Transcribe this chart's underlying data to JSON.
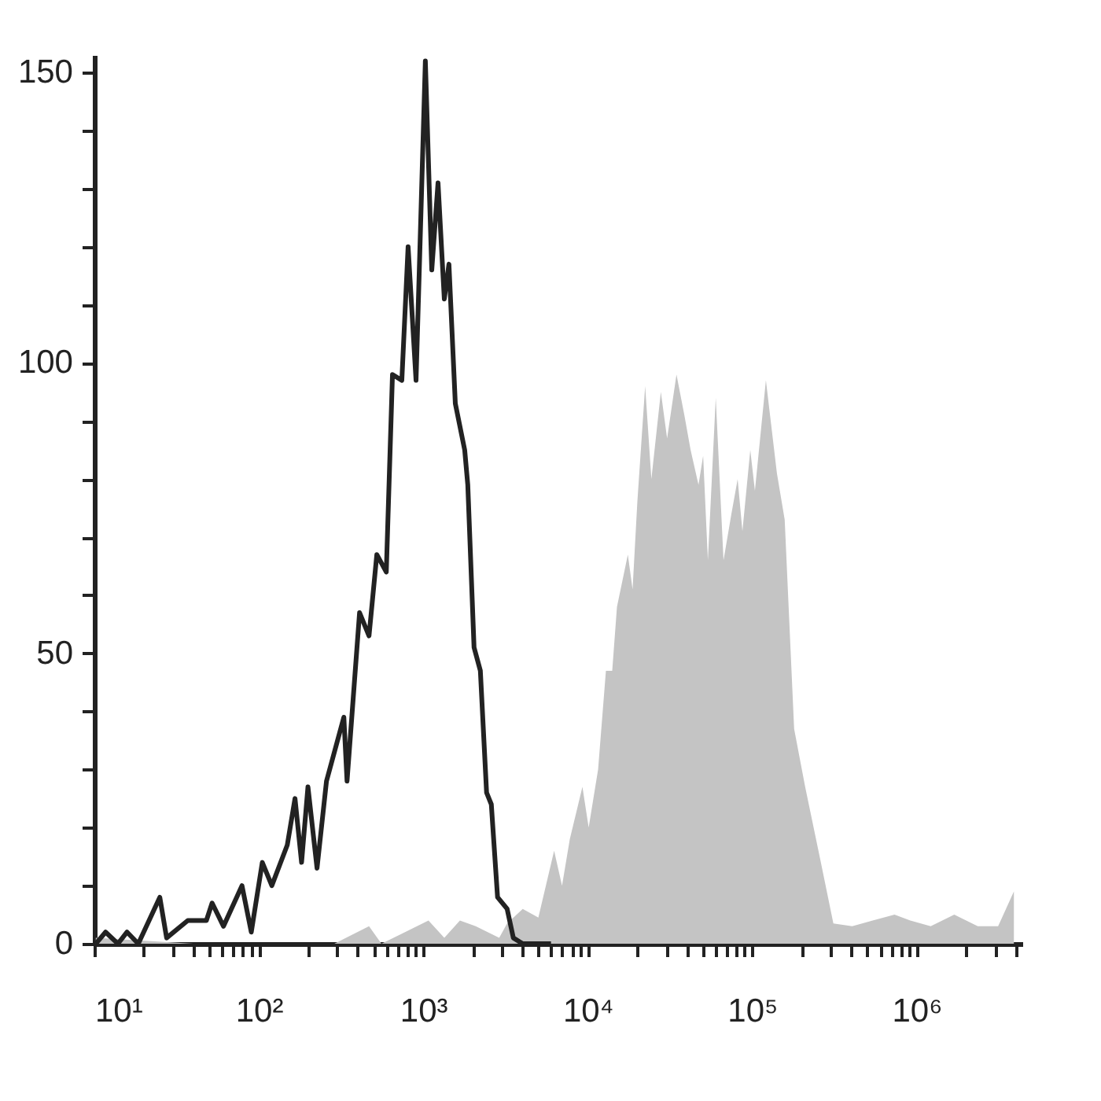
{
  "chart_data": {
    "type": "line",
    "log": "x",
    "xlim": [
      10,
      4400000
    ],
    "ylim": [
      0,
      153
    ],
    "xticks": [
      {
        "value": 10,
        "label": "10¹"
      },
      {
        "value": 20,
        "label": null
      },
      {
        "value": 30,
        "label": null
      },
      {
        "value": 40,
        "label": null
      },
      {
        "value": 50,
        "label": null
      },
      {
        "value": 60,
        "label": null
      },
      {
        "value": 70,
        "label": null
      },
      {
        "value": 80,
        "label": null
      },
      {
        "value": 90,
        "label": null
      },
      {
        "value": 100,
        "label": "10²"
      },
      {
        "value": 200,
        "label": null
      },
      {
        "value": 300,
        "label": null
      },
      {
        "value": 400,
        "label": null
      },
      {
        "value": 500,
        "label": null
      },
      {
        "value": 600,
        "label": null
      },
      {
        "value": 700,
        "label": null
      },
      {
        "value": 800,
        "label": null
      },
      {
        "value": 900,
        "label": null
      },
      {
        "value": 1000,
        "label": "10³"
      },
      {
        "value": 2000,
        "label": null
      },
      {
        "value": 3000,
        "label": null
      },
      {
        "value": 4000,
        "label": null
      },
      {
        "value": 5000,
        "label": null
      },
      {
        "value": 6000,
        "label": null
      },
      {
        "value": 7000,
        "label": null
      },
      {
        "value": 8000,
        "label": null
      },
      {
        "value": 9000,
        "label": null
      },
      {
        "value": 10000,
        "label": "10⁴"
      },
      {
        "value": 20000,
        "label": null
      },
      {
        "value": 30000,
        "label": null
      },
      {
        "value": 40000,
        "label": null
      },
      {
        "value": 50000,
        "label": null
      },
      {
        "value": 60000,
        "label": null
      },
      {
        "value": 70000,
        "label": null
      },
      {
        "value": 80000,
        "label": null
      },
      {
        "value": 90000,
        "label": null
      },
      {
        "value": 100000,
        "label": "10⁵"
      },
      {
        "value": 200000,
        "label": null
      },
      {
        "value": 300000,
        "label": null
      },
      {
        "value": 400000,
        "label": null
      },
      {
        "value": 500000,
        "label": null
      },
      {
        "value": 600000,
        "label": null
      },
      {
        "value": 700000,
        "label": null
      },
      {
        "value": 800000,
        "label": null
      },
      {
        "value": 900000,
        "label": null
      },
      {
        "value": 1000000,
        "label": "10⁶"
      },
      {
        "value": 2000000,
        "label": null
      },
      {
        "value": 3000000,
        "label": null
      },
      {
        "value": 4000000,
        "label": null
      }
    ],
    "yticks": [
      0,
      {
        "value": 10,
        "label": null
      },
      {
        "value": 20,
        "label": null
      },
      {
        "value": 30,
        "label": null
      },
      {
        "value": 40,
        "label": null
      },
      50,
      {
        "value": 60,
        "label": null
      },
      {
        "value": 70,
        "label": null
      },
      {
        "value": 80,
        "label": null
      },
      {
        "value": 90,
        "label": null
      },
      100,
      {
        "value": 110,
        "label": null
      },
      {
        "value": 120,
        "label": null
      },
      {
        "value": 130,
        "label": null
      },
      {
        "value": 140,
        "label": null
      },
      150
    ],
    "series": [
      {
        "color": "#222222",
        "x": [
          10.2,
          11.7,
          13.9,
          15.8,
          18.5,
          25,
          27.5,
          37,
          48,
          52,
          61,
          79,
          90,
          105,
          120,
          149,
          166,
          182,
          199,
          226,
          258,
          329,
          344,
          410,
          468,
          522,
          596,
          650,
          741,
          809,
          904,
          944,
          1030,
          1127,
          1230,
          1343,
          1433,
          1567,
          1787,
          1866,
          2037,
          2225,
          2428,
          2594,
          2831,
          3236,
          3532,
          4027,
          4909,
          5984
        ],
        "values": [
          0,
          2,
          0,
          2,
          0,
          8,
          1,
          4,
          4,
          7,
          3,
          10,
          2,
          14,
          10,
          17,
          25,
          14,
          27,
          13,
          28,
          39,
          28,
          57,
          53,
          67,
          64,
          98,
          97,
          120,
          97,
          115,
          152,
          116,
          131,
          111,
          117,
          93,
          85,
          79,
          51,
          47,
          26,
          24,
          8,
          6,
          1,
          0,
          0,
          0
        ]
      },
      {
        "type": "area",
        "color": "#c4c4c4",
        "x": [
          10.2,
          40,
          288,
          468,
          557,
          1076,
          1343,
          1671,
          2085,
          2897,
          3236,
          4027,
          5012,
          6251,
          6982,
          7787,
          9290,
          10140,
          11570,
          12910,
          14100,
          15070,
          17550,
          18750,
          20040,
          22360,
          24400,
          27860,
          30410,
          34680,
          38730,
          42270,
          47200,
          50370,
          53830,
          60100,
          67010,
          74820,
          81660,
          87300,
          97470,
          104000,
          121300,
          141500,
          157800,
          180100,
          210200,
          261800,
          312000,
          406300,
          540800,
          734500,
          916200,
          1219000,
          1695000,
          2357000,
          3133000,
          3908000
        ],
        "values": [
          1,
          0,
          0,
          3,
          0,
          4,
          1,
          4,
          3,
          1,
          3.5,
          6,
          4.5,
          16,
          10,
          18,
          27,
          20,
          30,
          47,
          47,
          58,
          67,
          61,
          76,
          96,
          80,
          95,
          87,
          98,
          91,
          85,
          79,
          84,
          66,
          94,
          66,
          74,
          80,
          71,
          85,
          78,
          97,
          81,
          73,
          37,
          27,
          14,
          3.5,
          3,
          4,
          5,
          4,
          3,
          5,
          3,
          3,
          9
        ]
      }
    ]
  }
}
